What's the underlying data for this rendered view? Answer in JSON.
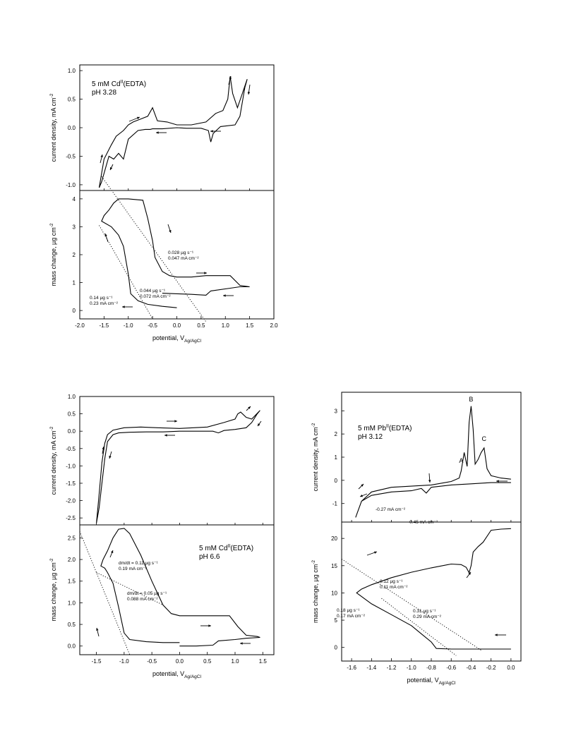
{
  "chart_data": [
    {
      "id": "p1",
      "type": "line",
      "panel": "top-left",
      "label_lines": [
        "5 mM Cd",
        "pH 3.28"
      ],
      "label_sup": "II",
      "label_tail": "(EDTA)",
      "xlim": [
        -2.0,
        2.0
      ],
      "xticks": [
        "-2.0",
        "-1.5",
        "-1.0",
        "-0.5",
        "0.0",
        "0.5",
        "1.0",
        "1.5",
        "2.0"
      ],
      "xlabel": "potential, V",
      "xlabel_sub": "Ag/AgCl",
      "current": {
        "ylim": [
          -1.1,
          1.1
        ],
        "yticks": [
          "1.0",
          "0.5",
          "0.0",
          "-0.5",
          "-1.0"
        ],
        "ylabel": "current density, mA cm",
        "ylabel_sup": "-2",
        "x": [
          0.0,
          -0.3,
          -0.5,
          -0.55,
          -0.65,
          -0.8,
          -1.0,
          -1.1,
          -1.2,
          -1.3,
          -1.4,
          -1.5,
          -1.55,
          -1.6,
          -1.5,
          -1.35,
          -1.25,
          -1.1,
          -1.0,
          -0.9,
          -0.75,
          -0.6,
          -0.5,
          -0.4,
          -0.2,
          0.0,
          0.3,
          0.6,
          0.8,
          0.95,
          1.05,
          1.1,
          1.15,
          1.25,
          1.35,
          1.45,
          1.4,
          1.3,
          1.2,
          0.9,
          0.75,
          0.7,
          0.65,
          0.5,
          0.2,
          0.0
        ],
        "y": [
          0.0,
          -0.02,
          -0.02,
          -0.03,
          -0.03,
          -0.05,
          -0.2,
          -0.55,
          -0.45,
          -0.55,
          -0.5,
          -0.8,
          -0.95,
          -1.05,
          -0.55,
          -0.3,
          -0.15,
          -0.05,
          0.05,
          0.1,
          0.15,
          0.2,
          0.35,
          0.12,
          0.1,
          0.05,
          0.05,
          0.1,
          0.25,
          0.3,
          0.5,
          0.9,
          0.6,
          0.35,
          0.6,
          0.85,
          0.7,
          0.2,
          0.05,
          0.02,
          -0.1,
          -0.25,
          -0.05,
          -0.01,
          -0.01,
          0.0
        ]
      },
      "mass": {
        "ylim": [
          -0.3,
          4.3
        ],
        "yticks": [
          "4",
          "3",
          "2",
          "1",
          "0"
        ],
        "ylabel": "mass change, µg cm",
        "ylabel_sup": "-2",
        "x": [
          0.0,
          -0.3,
          -0.6,
          -0.8,
          -0.95,
          -1.0,
          -1.1,
          -1.2,
          -1.35,
          -1.55,
          -1.5,
          -1.4,
          -1.3,
          -1.2,
          -1.0,
          -0.7,
          -0.6,
          -0.5,
          -0.45,
          -0.3,
          -0.15,
          0.0,
          0.3,
          0.6,
          0.9,
          1.1,
          1.3,
          1.5,
          1.3,
          1.1,
          0.7,
          0.6,
          0.3,
          0.0,
          -0.3
        ],
        "y": [
          0.1,
          0.15,
          0.22,
          0.35,
          0.6,
          1.3,
          2.3,
          2.7,
          3.0,
          3.2,
          3.4,
          3.6,
          3.85,
          4.0,
          4.0,
          3.95,
          3.3,
          2.5,
          1.9,
          1.4,
          1.25,
          1.2,
          1.2,
          1.25,
          1.25,
          1.25,
          0.9,
          0.85,
          0.85,
          0.8,
          0.7,
          0.55,
          0.58,
          0.6,
          0.62
        ]
      },
      "annotations": [
        {
          "lines": [
            "0.028 µg s⁻¹",
            "0.047 mA cm⁻²"
          ]
        },
        {
          "lines": [
            "0.044 µg s⁻¹",
            "0.072 mA cm⁻²"
          ]
        },
        {
          "lines": [
            "0.14 µg s⁻¹",
            "0.23 mA cm⁻²"
          ]
        }
      ]
    },
    {
      "id": "p2",
      "type": "line",
      "panel": "bottom-left",
      "label_lines": [
        "5 mM Cd",
        "pH 6.6"
      ],
      "label_sup": "II",
      "label_tail": "(EDTA)",
      "xlim": [
        -1.8,
        1.7
      ],
      "xticks": [
        "-1.5",
        "-1.0",
        "-0.5",
        "0.0",
        "0.5",
        "1.0",
        "1.5"
      ],
      "xlabel": "potential, V",
      "xlabel_sub": "Ag/AgCl",
      "current": {
        "ylim": [
          -2.7,
          1.0
        ],
        "yticks": [
          "1.0",
          "0.5",
          "0.0",
          "-0.5",
          "-1.0",
          "-1.5",
          "-2.0",
          "-2.5"
        ],
        "ylabel": "current density, mA cm",
        "ylabel_sup": "-2",
        "x": [
          0.0,
          -0.3,
          -0.6,
          -0.9,
          -1.1,
          -1.2,
          -1.3,
          -1.35,
          -1.4,
          -1.45,
          -1.5,
          -1.45,
          -1.4,
          -1.35,
          -1.3,
          -1.2,
          -1.0,
          -0.7,
          -0.4,
          0.0,
          0.5,
          0.8,
          1.0,
          1.05,
          1.1,
          1.2,
          1.3,
          1.45,
          1.4,
          1.3,
          1.2,
          1.0,
          0.8,
          0.7,
          0.6,
          0.3,
          0.0
        ],
        "y": [
          0.0,
          -0.02,
          -0.02,
          -0.03,
          -0.05,
          -0.1,
          -0.3,
          -0.8,
          -1.5,
          -2.2,
          -2.65,
          -1.8,
          -0.9,
          -0.35,
          -0.1,
          0.03,
          0.1,
          0.12,
          0.1,
          0.08,
          0.12,
          0.25,
          0.35,
          0.5,
          0.55,
          0.4,
          0.35,
          0.6,
          0.5,
          0.25,
          0.1,
          0.05,
          0.02,
          -0.05,
          0.0,
          0.0,
          0.0
        ]
      },
      "mass": {
        "ylim": [
          -0.2,
          2.8
        ],
        "yticks": [
          "2.5",
          "2.0",
          "1.5",
          "1.0",
          "0.5",
          "0.0"
        ],
        "ylabel": "mass change, µg cm",
        "ylabel_sup": "-2",
        "x": [
          0.0,
          -0.3,
          -0.6,
          -0.9,
          -1.0,
          -1.1,
          -1.2,
          -1.3,
          -1.35,
          -1.42,
          -1.38,
          -1.3,
          -1.2,
          -1.1,
          -1.0,
          -0.9,
          -0.7,
          -0.5,
          -0.3,
          -0.15,
          0.0,
          0.5,
          0.9,
          1.05,
          1.2,
          1.4,
          1.45,
          1.2,
          1.0,
          0.7,
          0.6,
          0.3,
          0.0
        ],
        "y": [
          0.08,
          0.08,
          0.1,
          0.15,
          0.3,
          0.9,
          1.45,
          1.7,
          1.8,
          1.85,
          2.0,
          2.2,
          2.5,
          2.7,
          2.72,
          2.6,
          2.1,
          1.5,
          0.95,
          0.75,
          0.7,
          0.7,
          0.7,
          0.45,
          0.25,
          0.22,
          0.2,
          0.18,
          0.15,
          0.12,
          0.02,
          0.0,
          0.0
        ]
      },
      "annotations": [
        {
          "lines": [
            "dm/dt = 0.11 µg s⁻¹",
            "0.19 mA cm⁻²"
          ]
        },
        {
          "lines": [
            "dm/dt = 0.05 µg s⁻¹",
            "0.088 mA cm⁻²"
          ]
        }
      ]
    },
    {
      "id": "p3",
      "type": "line",
      "panel": "bottom-right",
      "label_lines": [
        "5 mM Pb",
        "pH 3.12"
      ],
      "label_sup": "II",
      "label_tail": "(EDTA)",
      "xlim": [
        -1.7,
        0.1
      ],
      "xticks": [
        "-1.6",
        "-1.4",
        "-1.2",
        "-1.0",
        "-0.8",
        "-0.6",
        "-0.4",
        "-0.2",
        "0.0"
      ],
      "xlabel": "potential, V",
      "xlabel_sub": "Ag/AgCl",
      "peak_labels": [
        {
          "text": "A",
          "x": -0.5,
          "y": 0.75
        },
        {
          "text": "B",
          "x": -0.4,
          "y": 3.4
        },
        {
          "text": "C",
          "x": -0.27,
          "y": 1.7
        }
      ],
      "current": {
        "ylim": [
          -1.8,
          3.8
        ],
        "yticks": [
          "3",
          "2",
          "1",
          "0",
          "-1"
        ],
        "ylabel": "current density, mA cm",
        "ylabel_sup": "-2",
        "x": [
          0.0,
          -0.2,
          -0.4,
          -0.6,
          -0.8,
          -0.85,
          -0.9,
          -1.0,
          -1.2,
          -1.4,
          -1.5,
          -1.56,
          -1.5,
          -1.4,
          -1.2,
          -1.0,
          -0.8,
          -0.6,
          -0.52,
          -0.5,
          -0.47,
          -0.44,
          -0.42,
          -0.4,
          -0.38,
          -0.36,
          -0.33,
          -0.3,
          -0.27,
          -0.24,
          -0.2,
          -0.1,
          0.0
        ],
        "y": [
          -0.1,
          -0.1,
          -0.15,
          -0.2,
          -0.3,
          -0.55,
          -0.35,
          -0.45,
          -0.5,
          -0.65,
          -0.9,
          -1.6,
          -0.9,
          -0.5,
          -0.3,
          -0.25,
          -0.2,
          -0.05,
          0.1,
          0.4,
          1.2,
          0.6,
          2.5,
          3.2,
          2.2,
          0.7,
          0.9,
          1.2,
          1.4,
          0.5,
          0.2,
          0.1,
          0.05
        ]
      },
      "mass": {
        "ylim": [
          -2.5,
          23.0
        ],
        "yticks": [
          "20",
          "15",
          "10",
          "5",
          "0"
        ],
        "ylabel": "mass change, µg cm",
        "ylabel_sup": "-2",
        "x": [
          0.0,
          -0.3,
          -0.6,
          -0.75,
          -0.8,
          -0.9,
          -1.0,
          -1.2,
          -1.4,
          -1.55,
          -1.5,
          -1.4,
          -1.2,
          -1.0,
          -0.8,
          -0.6,
          -0.5,
          -0.45,
          -0.42,
          -0.4,
          -0.38,
          -0.33,
          -0.28,
          -0.2,
          -0.1,
          0.0
        ],
        "y": [
          -0.3,
          -0.3,
          -0.3,
          -0.2,
          1.0,
          2.5,
          4.0,
          6.0,
          8.0,
          10.0,
          10.7,
          11.5,
          12.8,
          13.8,
          14.6,
          15.3,
          15.2,
          14.7,
          13.7,
          15.0,
          17.5,
          18.5,
          19.3,
          21.5,
          21.7,
          21.8
        ]
      },
      "annotations": [
        {
          "lines": [
            "-0.27 mA cm⁻²"
          ]
        },
        {
          "lines": [
            "-0.45 mA cm⁻²"
          ]
        },
        {
          "lines": [
            "0.12 µg s⁻¹",
            "0.11 mA cm⁻²"
          ]
        },
        {
          "lines": [
            "0.18 µg s⁻¹",
            "0.17 mA cm⁻²"
          ]
        },
        {
          "lines": [
            "0.31 µg s⁻¹",
            "0.29 mA cm⁻²"
          ]
        }
      ]
    }
  ]
}
